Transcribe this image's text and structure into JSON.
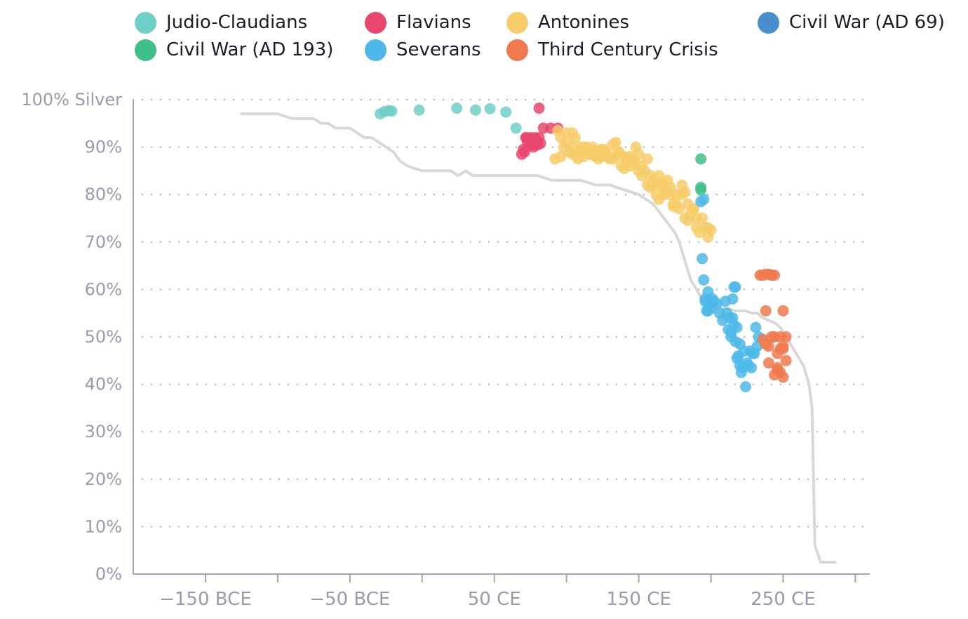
{
  "chart_data": {
    "type": "scatter",
    "title": "",
    "xlabel": "",
    "ylabel": "",
    "xlim": [
      -200,
      310
    ],
    "ylim": [
      0,
      100
    ],
    "x_ticks": [
      {
        "value": -150,
        "label": "−150 BCE"
      },
      {
        "value": -100,
        "label": ""
      },
      {
        "value": -50,
        "label": "−50 BCE"
      },
      {
        "value": 0,
        "label": ""
      },
      {
        "value": 50,
        "label": "50 CE"
      },
      {
        "value": 100,
        "label": ""
      },
      {
        "value": 150,
        "label": "150 CE"
      },
      {
        "value": 200,
        "label": ""
      },
      {
        "value": 250,
        "label": "250 CE"
      },
      {
        "value": 300,
        "label": ""
      }
    ],
    "y_ticks": [
      {
        "value": 0,
        "label": "0%"
      },
      {
        "value": 10,
        "label": "10%"
      },
      {
        "value": 20,
        "label": "20%"
      },
      {
        "value": 30,
        "label": "30%"
      },
      {
        "value": 40,
        "label": "40%"
      },
      {
        "value": 50,
        "label": "50%"
      },
      {
        "value": 60,
        "label": "60%"
      },
      {
        "value": 70,
        "label": "70%"
      },
      {
        "value": 80,
        "label": "80%"
      },
      {
        "value": 90,
        "label": "90%"
      },
      {
        "value": 100,
        "label": "100% Silver"
      }
    ],
    "grid": "horizontal dotted",
    "legend_position": "top",
    "series": [
      {
        "name": "Judio-Claudians",
        "color": "#6fcfc6",
        "x": [
          -29,
          -26,
          -23,
          -21,
          -2,
          24,
          37,
          47,
          58,
          65
        ],
        "y": [
          97,
          97.5,
          97.7,
          97.6,
          97.8,
          98.2,
          97.8,
          98.1,
          97.4,
          94
        ]
      },
      {
        "name": "Flavians",
        "color": "#e8466c",
        "x": [
          81,
          69,
          70,
          72,
          73,
          74,
          75,
          76,
          77,
          78,
          79,
          80,
          81,
          82,
          71,
          72,
          77,
          84,
          89,
          94
        ],
        "y": [
          98.2,
          88.5,
          89.5,
          92,
          91,
          91.5,
          92,
          90.5,
          91,
          92,
          91.5,
          90.5,
          92,
          90.8,
          89,
          92,
          90,
          94,
          94,
          94
        ]
      },
      {
        "name": "Antonines",
        "color": "#f7cd6a",
        "x": [
          94,
          96,
          98,
          100,
          102,
          104,
          106,
          108,
          110,
          112,
          114,
          116,
          118,
          120,
          122,
          124,
          126,
          128,
          130,
          132,
          134,
          136,
          138,
          140,
          142,
          144,
          146,
          148,
          150,
          152,
          154,
          156,
          158,
          160,
          162,
          164,
          166,
          168,
          170,
          172,
          174,
          176,
          178,
          180,
          182,
          184,
          186,
          188,
          190,
          192,
          194,
          196,
          198,
          200,
          96,
          100,
          104,
          108,
          112,
          116,
          120,
          124,
          128,
          132,
          136,
          140,
          144,
          148,
          152,
          156,
          160,
          164,
          168,
          172,
          176,
          180,
          184,
          188,
          92,
          104,
          110,
          118,
          126,
          134,
          142,
          150,
          158,
          166,
          174,
          182,
          190,
          198
        ],
        "y": [
          93.5,
          92,
          90,
          91,
          89,
          88.5,
          92,
          88,
          89,
          88,
          90,
          89,
          88.5,
          89,
          87.5,
          88,
          89,
          88,
          87.5,
          90.5,
          88,
          89,
          86,
          88,
          87,
          86,
          87.5,
          86.5,
          85,
          84,
          85,
          82,
          81.5,
          82,
          80,
          79,
          82,
          80,
          83,
          80,
          78,
          80,
          77,
          80,
          75,
          78,
          76,
          77,
          75,
          72,
          75,
          73,
          71,
          72.5,
          88,
          93,
          90,
          87.5,
          90,
          88.5,
          88,
          89.5,
          88.5,
          87.5,
          89,
          85.5,
          88,
          90,
          86,
          87.5,
          83,
          84,
          81,
          81.5,
          78,
          82,
          74.5,
          77,
          87.5,
          93,
          90,
          90,
          89.5,
          91,
          87.5,
          88.5,
          84,
          82.5,
          77.5,
          80.5,
          73,
          73
        ]
      },
      {
        "name": "Civil War (AD 69)",
        "color": "#4a8fcd",
        "x": [],
        "y": []
      },
      {
        "name": "Civil War (AD 193)",
        "color": "#3fbf8a",
        "x": [
          193,
          193,
          193
        ],
        "y": [
          87.5,
          81.5,
          81
        ]
      },
      {
        "name": "Severans",
        "color": "#4db8e8",
        "x": [
          193,
          195,
          194,
          195,
          196,
          197,
          198,
          199,
          200,
          202,
          204,
          206,
          208,
          210,
          211,
          212,
          213,
          214,
          215,
          216,
          217,
          218,
          219,
          220,
          221,
          222,
          223,
          224,
          225,
          226,
          227,
          228,
          229,
          230,
          231,
          232,
          233,
          215,
          216,
          217,
          214,
          218,
          220,
          196,
          198,
          201
        ],
        "y": [
          78.5,
          79,
          66.5,
          62,
          58,
          55.5,
          59.5,
          57,
          56,
          57.5,
          57,
          55,
          53.5,
          57.5,
          55,
          51.5,
          54,
          50,
          54,
          52.5,
          49,
          45.5,
          46,
          44,
          42.5,
          43.5,
          47,
          39.5,
          44.5,
          44,
          47,
          43.5,
          46.5,
          46.5,
          52,
          48,
          50,
          58,
          60.5,
          60.5,
          51,
          52,
          48.5,
          57.5,
          55.5,
          58
        ]
      },
      {
        "name": "Third Century Crisis",
        "color": "#ee7a4e",
        "x": [
          234,
          236,
          238,
          240,
          242,
          244,
          246,
          248,
          250,
          252,
          236,
          238,
          240,
          242,
          244,
          246,
          248,
          250,
          252,
          238,
          240,
          242,
          244,
          246,
          248,
          250,
          250
        ],
        "y": [
          63,
          63,
          63.2,
          63.2,
          63,
          50,
          46.5,
          50,
          55.5,
          45,
          49.5,
          55.5,
          48,
          50,
          42,
          43.5,
          42.5,
          47.5,
          50,
          48.5,
          44.5,
          63,
          63,
          43,
          47.5,
          41.5,
          48
        ]
      }
    ],
    "reference_line": {
      "color": "#d8d8d8",
      "x": [
        -125,
        -100,
        -90,
        -80,
        -75,
        -70,
        -65,
        -60,
        -55,
        -50,
        -45,
        -40,
        -35,
        -30,
        -25,
        -20,
        -15,
        -10,
        -5,
        0,
        5,
        10,
        15,
        20,
        25,
        30,
        35,
        40,
        45,
        50,
        55,
        60,
        65,
        70,
        75,
        80,
        85,
        90,
        95,
        100,
        105,
        110,
        115,
        120,
        125,
        130,
        135,
        140,
        145,
        150,
        155,
        160,
        165,
        170,
        175,
        178,
        180,
        182,
        184,
        186,
        188,
        190,
        192,
        194,
        196,
        200,
        204,
        208,
        212,
        216,
        220,
        224,
        228,
        232,
        236,
        240,
        244,
        248,
        252,
        256,
        260,
        264,
        268,
        270,
        272,
        276,
        280,
        286
      ],
      "y": [
        97,
        97,
        96,
        96,
        96,
        95,
        95,
        94,
        94,
        94,
        93,
        92,
        92,
        91,
        90,
        89,
        87,
        86,
        85.5,
        85,
        85,
        85,
        85,
        85,
        84,
        85,
        84,
        84,
        84,
        84,
        84,
        84,
        84,
        84,
        84,
        84,
        83.5,
        83,
        83,
        83,
        83,
        83,
        82.5,
        82,
        82,
        82,
        81.5,
        81,
        80.5,
        80,
        79,
        78,
        76,
        74,
        72,
        70,
        68,
        66,
        64,
        62,
        61,
        60,
        59,
        58,
        57.5,
        57,
        56.5,
        56,
        56,
        55.5,
        55.5,
        55.5,
        55,
        55,
        54,
        53.5,
        53,
        52,
        50,
        48,
        46,
        44,
        40,
        35,
        6,
        2.5,
        2.5,
        2.5
      ]
    }
  }
}
